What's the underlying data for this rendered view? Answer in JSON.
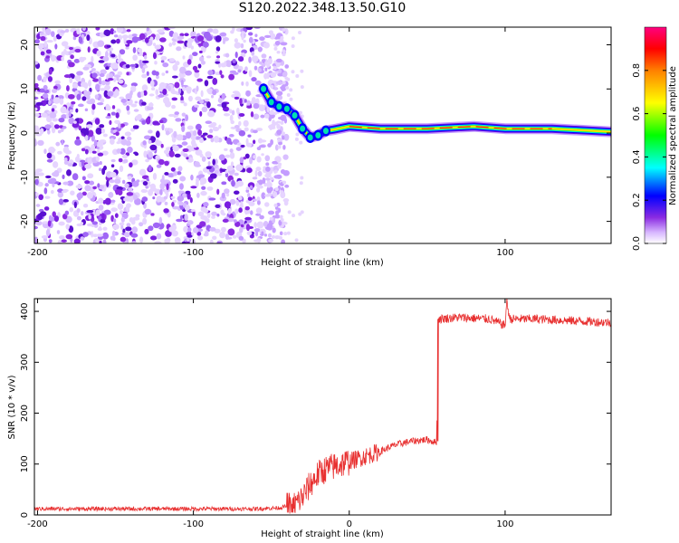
{
  "title": "S120.2022.348.13.50.G10",
  "colors": {
    "scatter": "#8a2be2",
    "snr_line": "#e83030",
    "axis": "#000000"
  },
  "chart_data": [
    {
      "type": "heatmap",
      "xlabel": "Height of straight line (km)",
      "ylabel": "Frequency (Hz)",
      "xlim": [
        -202,
        168
      ],
      "ylim": [
        -25,
        24
      ],
      "xticks": [
        -200,
        -100,
        0,
        100
      ],
      "yticks": [
        -20,
        -10,
        0,
        10,
        20
      ],
      "colorbar": {
        "label": "Normalized spectral amplitude",
        "range": [
          0,
          1
        ],
        "ticks": [
          "0.0",
          "0.2",
          "0.4",
          "0.6",
          "0.8"
        ],
        "tick_values": [
          0,
          0.2,
          0.4,
          0.6,
          0.8
        ],
        "colormap": "hsv"
      },
      "noise_region_x": [
        -202,
        -40
      ],
      "main_ridge": [
        {
          "x": -55,
          "y": 10
        },
        {
          "x": -50,
          "y": 7
        },
        {
          "x": -45,
          "y": 6
        },
        {
          "x": -40,
          "y": 5.5
        },
        {
          "x": -35,
          "y": 4
        },
        {
          "x": -30,
          "y": 1
        },
        {
          "x": -25,
          "y": -1
        },
        {
          "x": -20,
          "y": -0.5
        },
        {
          "x": -15,
          "y": 0.5
        },
        {
          "x": -10,
          "y": 0.8
        },
        {
          "x": 0,
          "y": 1.5
        },
        {
          "x": 20,
          "y": 1
        },
        {
          "x": 50,
          "y": 1
        },
        {
          "x": 80,
          "y": 1.5
        },
        {
          "x": 100,
          "y": 1
        },
        {
          "x": 130,
          "y": 1
        },
        {
          "x": 168,
          "y": 0.3
        }
      ]
    },
    {
      "type": "line",
      "xlabel": "Height of straight line (km)",
      "ylabel": "SNR (10 * v/v)",
      "xlim": [
        -202,
        168
      ],
      "ylim": [
        0,
        425
      ],
      "xticks": [
        -200,
        -100,
        0,
        100
      ],
      "yticks": [
        0,
        100,
        200,
        300,
        400
      ],
      "series": [
        {
          "name": "",
          "points": [
            [
              -202,
              12
            ],
            [
              -150,
              12
            ],
            [
              -100,
              12
            ],
            [
              -60,
              12
            ],
            [
              -45,
              14
            ],
            [
              -35,
              20
            ],
            [
              -30,
              35
            ],
            [
              -25,
              60
            ],
            [
              -20,
              80
            ],
            [
              -15,
              90
            ],
            [
              -10,
              95
            ],
            [
              -5,
              100
            ],
            [
              0,
              105
            ],
            [
              5,
              110
            ],
            [
              10,
              115
            ],
            [
              15,
              120
            ],
            [
              20,
              125
            ],
            [
              25,
              132
            ],
            [
              30,
              138
            ],
            [
              40,
              145
            ],
            [
              50,
              148
            ],
            [
              56,
              142
            ],
            [
              57,
              385
            ],
            [
              70,
              388
            ],
            [
              90,
              385
            ],
            [
              100,
              372
            ],
            [
              101,
              420
            ],
            [
              103,
              385
            ],
            [
              120,
              385
            ],
            [
              140,
              382
            ],
            [
              168,
              378
            ]
          ]
        }
      ]
    }
  ]
}
